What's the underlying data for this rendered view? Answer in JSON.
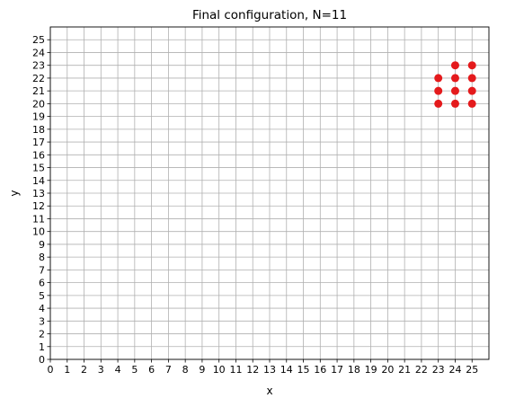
{
  "chart_data": {
    "type": "scatter",
    "title": "Final configuration, N=11",
    "xlabel": "x",
    "ylabel": "y",
    "xlim": [
      0,
      26
    ],
    "ylim": [
      0,
      26
    ],
    "xticks": [
      0,
      1,
      2,
      3,
      4,
      5,
      6,
      7,
      8,
      9,
      10,
      11,
      12,
      13,
      14,
      15,
      16,
      17,
      18,
      19,
      20,
      21,
      22,
      23,
      24,
      25
    ],
    "yticks": [
      0,
      1,
      2,
      3,
      4,
      5,
      6,
      7,
      8,
      9,
      10,
      11,
      12,
      13,
      14,
      15,
      16,
      17,
      18,
      19,
      20,
      21,
      22,
      23,
      24,
      25
    ],
    "grid": true,
    "marker_color": "#e41a1c",
    "points": [
      {
        "x": 23,
        "y": 20
      },
      {
        "x": 23,
        "y": 21
      },
      {
        "x": 23,
        "y": 22
      },
      {
        "x": 24,
        "y": 20
      },
      {
        "x": 24,
        "y": 21
      },
      {
        "x": 24,
        "y": 22
      },
      {
        "x": 24,
        "y": 23
      },
      {
        "x": 25,
        "y": 20
      },
      {
        "x": 25,
        "y": 21
      },
      {
        "x": 25,
        "y": 22
      },
      {
        "x": 25,
        "y": 23
      }
    ]
  }
}
